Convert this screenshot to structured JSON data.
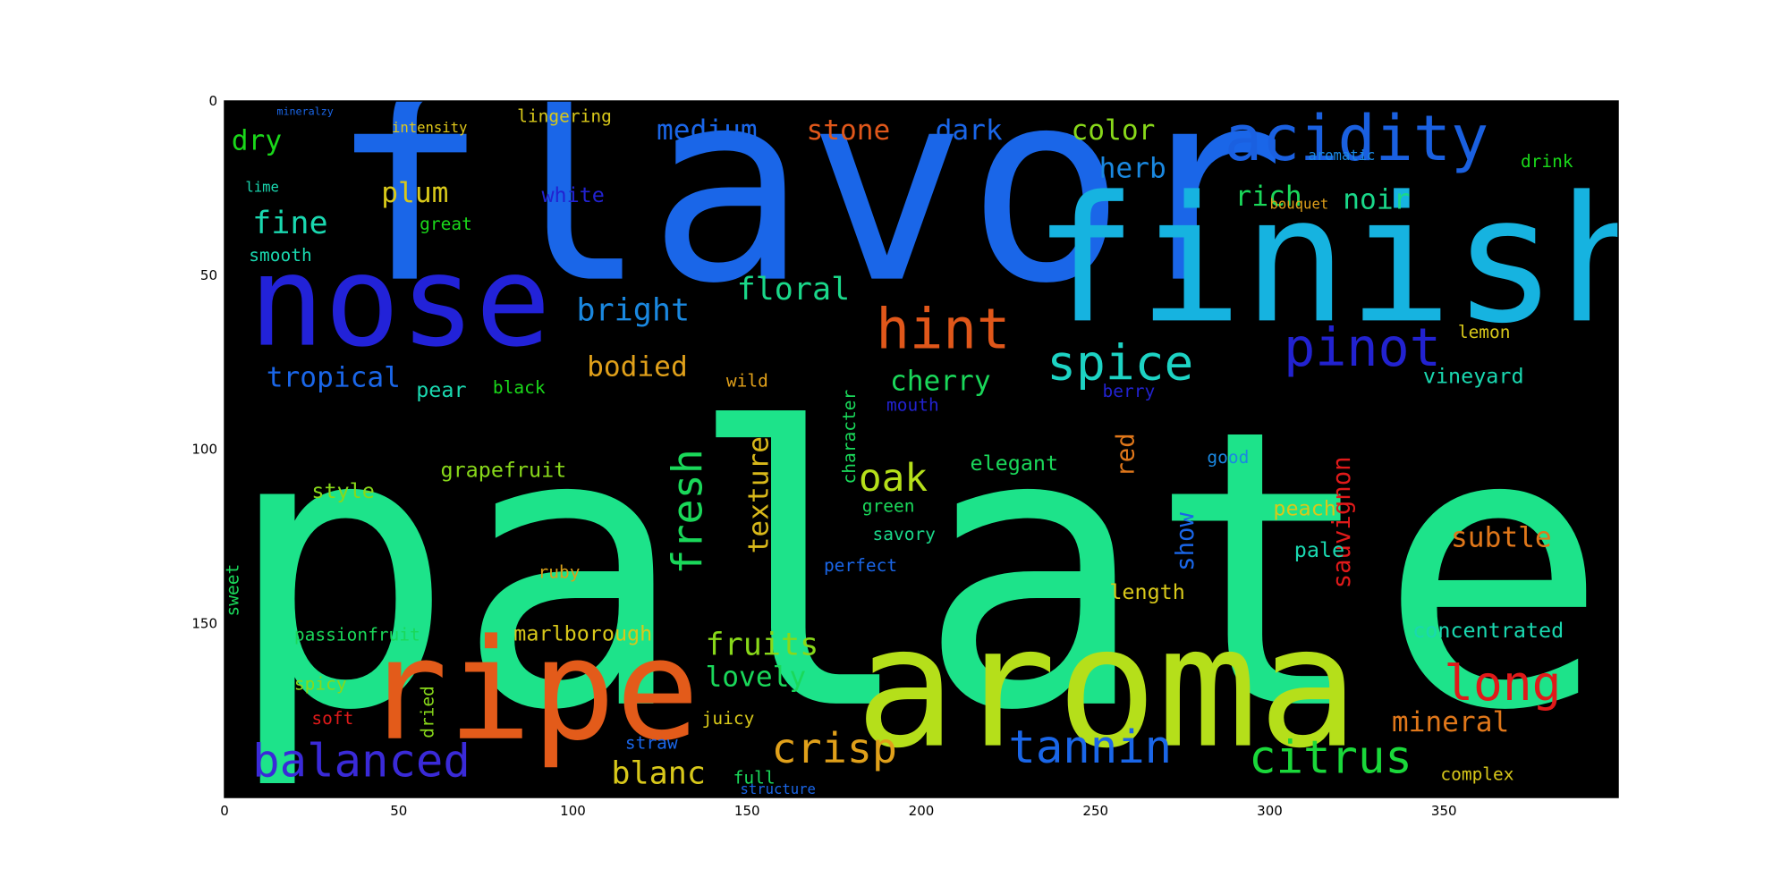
{
  "chart_data": {
    "type": "wordcloud",
    "background_color": "#000000",
    "frame_color": "#000000",
    "xlim": [
      0,
      400
    ],
    "ylim": [
      0,
      200
    ],
    "y_inverted": true,
    "x_ticks": [
      "0",
      "50",
      "100",
      "150",
      "200",
      "250",
      "300",
      "350"
    ],
    "x_tick_values": [
      0,
      50,
      100,
      150,
      200,
      250,
      300,
      350
    ],
    "y_ticks": [
      "0",
      "50",
      "100",
      "150"
    ],
    "y_tick_values": [
      0,
      50,
      100,
      150
    ],
    "words": [
      {
        "text": "palate",
        "x": 0,
        "y": 173,
        "size": 110,
        "color": "#1de38a"
      },
      {
        "text": "flavor",
        "x": 30,
        "y": 51,
        "size": 76,
        "color": "#1a66e8"
      },
      {
        "text": "finish",
        "x": 232,
        "y": 63,
        "size": 50,
        "color": "#16b3e0"
      },
      {
        "text": "aroma",
        "x": 181,
        "y": 185,
        "size": 48,
        "color": "#b5df1a"
      },
      {
        "text": "nose",
        "x": 7,
        "y": 70,
        "size": 36,
        "color": "#2222d8"
      },
      {
        "text": "ripe",
        "x": 40,
        "y": 183,
        "size": 40,
        "color": "#e35b1a"
      },
      {
        "text": "acidity",
        "x": 287,
        "y": 17,
        "size": 18,
        "color": "#1a60e0"
      },
      {
        "text": "hint",
        "x": 187,
        "y": 71,
        "size": 16,
        "color": "#e0571a"
      },
      {
        "text": "pinot",
        "x": 304,
        "y": 76,
        "size": 15,
        "color": "#2222d0"
      },
      {
        "text": "spice",
        "x": 236,
        "y": 80,
        "size": 14,
        "color": "#1dd3c4"
      },
      {
        "text": "long",
        "x": 350,
        "y": 172,
        "size": 14,
        "color": "#e01a1a"
      },
      {
        "text": "balanced",
        "x": 8,
        "y": 194,
        "size": 13,
        "color": "#3a2ad8"
      },
      {
        "text": "tannin",
        "x": 225,
        "y": 190,
        "size": 13,
        "color": "#1a66e8"
      },
      {
        "text": "citrus",
        "x": 294,
        "y": 193,
        "size": 13,
        "color": "#1ad83a"
      },
      {
        "text": "crisp",
        "x": 157,
        "y": 190,
        "size": 12,
        "color": "#e0a01a"
      },
      {
        "text": "fresh",
        "x": 137,
        "y": 136,
        "size": 12,
        "color": "#1ad85a",
        "rotate": true
      },
      {
        "text": "oak",
        "x": 182,
        "y": 112,
        "size": 11,
        "color": "#b5df1a"
      },
      {
        "text": "texture",
        "x": 156,
        "y": 130,
        "size": 8,
        "color": "#d8b81a",
        "rotate": true
      },
      {
        "text": "sauvignon",
        "x": 323,
        "y": 140,
        "size": 7,
        "color": "#e01a1a",
        "rotate": true
      },
      {
        "text": "bright",
        "x": 101,
        "y": 63,
        "size": 9,
        "color": "#1a88e0"
      },
      {
        "text": "floral",
        "x": 147,
        "y": 57,
        "size": 9,
        "color": "#1ad88a"
      },
      {
        "text": "tropical",
        "x": 12,
        "y": 82,
        "size": 8,
        "color": "#1a66e8"
      },
      {
        "text": "bodied",
        "x": 104,
        "y": 79,
        "size": 8,
        "color": "#e0a01a"
      },
      {
        "text": "cherry",
        "x": 191,
        "y": 83,
        "size": 8,
        "color": "#1ad85a"
      },
      {
        "text": "subtle",
        "x": 352,
        "y": 128,
        "size": 8,
        "color": "#e0771a"
      },
      {
        "text": "mineral",
        "x": 335,
        "y": 181,
        "size": 8,
        "color": "#e0771a"
      },
      {
        "text": "blanc",
        "x": 111,
        "y": 196,
        "size": 9,
        "color": "#d8c81a"
      },
      {
        "text": "lovely",
        "x": 138,
        "y": 168,
        "size": 8,
        "color": "#1ad85a"
      },
      {
        "text": "fruits",
        "x": 138,
        "y": 159,
        "size": 9,
        "color": "#88d81a"
      },
      {
        "text": "medium",
        "x": 124,
        "y": 11,
        "size": 8,
        "color": "#1a66e8"
      },
      {
        "text": "stone",
        "x": 167,
        "y": 11,
        "size": 8,
        "color": "#e0571a"
      },
      {
        "text": "dark",
        "x": 204,
        "y": 11,
        "size": 8,
        "color": "#1a66e8"
      },
      {
        "text": "color",
        "x": 243,
        "y": 11,
        "size": 8,
        "color": "#88d81a"
      },
      {
        "text": "herb",
        "x": 251,
        "y": 22,
        "size": 8,
        "color": "#1a88e0"
      },
      {
        "text": "rich",
        "x": 290,
        "y": 30,
        "size": 8,
        "color": "#1ad85a"
      },
      {
        "text": "noir",
        "x": 321,
        "y": 31,
        "size": 8,
        "color": "#1ad88a"
      },
      {
        "text": "dry",
        "x": 2,
        "y": 14,
        "size": 8,
        "color": "#1ad81a"
      },
      {
        "text": "fine",
        "x": 8,
        "y": 38,
        "size": 9,
        "color": "#1ad8b0"
      },
      {
        "text": "plum",
        "x": 45,
        "y": 29,
        "size": 8,
        "color": "#d8c81a"
      },
      {
        "text": "white",
        "x": 91,
        "y": 29,
        "size": 6,
        "color": "#2222d0"
      },
      {
        "text": "great",
        "x": 56,
        "y": 37,
        "size": 5,
        "color": "#1ad81a"
      },
      {
        "text": "smooth",
        "x": 7,
        "y": 46,
        "size": 5,
        "color": "#1ad8b0"
      },
      {
        "text": "lingering",
        "x": 84,
        "y": 6,
        "size": 5,
        "color": "#d8c81a"
      },
      {
        "text": "intensity",
        "x": 48,
        "y": 9,
        "size": 4,
        "color": "#e0c81a"
      },
      {
        "text": "lime",
        "x": 6,
        "y": 26,
        "size": 4,
        "color": "#1ad8b0"
      },
      {
        "text": "pear",
        "x": 55,
        "y": 85,
        "size": 6,
        "color": "#1ad8b0"
      },
      {
        "text": "black",
        "x": 77,
        "y": 84,
        "size": 5,
        "color": "#1ad81a"
      },
      {
        "text": "wild",
        "x": 144,
        "y": 82,
        "size": 5,
        "color": "#e0a01a"
      },
      {
        "text": "grapefruit",
        "x": 62,
        "y": 108,
        "size": 6,
        "color": "#88d81a"
      },
      {
        "text": "style",
        "x": 25,
        "y": 114,
        "size": 6,
        "color": "#88d81a"
      },
      {
        "text": "passionfruit",
        "x": 20,
        "y": 155,
        "size": 5,
        "color": "#1ad85a"
      },
      {
        "text": "marlborough",
        "x": 83,
        "y": 155,
        "size": 6,
        "color": "#d8c81a"
      },
      {
        "text": "sweet",
        "x": 4,
        "y": 148,
        "size": 5,
        "color": "#1ad85a",
        "rotate": true
      },
      {
        "text": "spicy",
        "x": 20,
        "y": 169,
        "size": 5,
        "color": "#88d81a"
      },
      {
        "text": "soft",
        "x": 25,
        "y": 179,
        "size": 5,
        "color": "#e01a1a"
      },
      {
        "text": "dried",
        "x": 60,
        "y": 183,
        "size": 5,
        "color": "#88d81a",
        "rotate": true
      },
      {
        "text": "juicy",
        "x": 137,
        "y": 179,
        "size": 5,
        "color": "#d8c81a"
      },
      {
        "text": "full",
        "x": 146,
        "y": 196,
        "size": 5,
        "color": "#1ad85a"
      },
      {
        "text": "straw",
        "x": 115,
        "y": 186,
        "size": 5,
        "color": "#1a66e8"
      },
      {
        "text": "structure",
        "x": 148,
        "y": 199,
        "size": 4,
        "color": "#1a66e8"
      },
      {
        "text": "ruby",
        "x": 90,
        "y": 137,
        "size": 5,
        "color": "#d8a01a"
      },
      {
        "text": "savory",
        "x": 186,
        "y": 126,
        "size": 5,
        "color": "#1ad88a"
      },
      {
        "text": "perfect",
        "x": 172,
        "y": 135,
        "size": 5,
        "color": "#1a66e8"
      },
      {
        "text": "green",
        "x": 183,
        "y": 118,
        "size": 5,
        "color": "#1ad85a"
      },
      {
        "text": "elegant",
        "x": 214,
        "y": 106,
        "size": 6,
        "color": "#1ad85a"
      },
      {
        "text": "mouth",
        "x": 190,
        "y": 89,
        "size": 5,
        "color": "#2222d0"
      },
      {
        "text": "berry",
        "x": 252,
        "y": 85,
        "size": 5,
        "color": "#2222d0"
      },
      {
        "text": "red",
        "x": 261,
        "y": 108,
        "size": 7,
        "color": "#e0771a",
        "rotate": true
      },
      {
        "text": "show",
        "x": 278,
        "y": 135,
        "size": 7,
        "color": "#1a66e8",
        "rotate": true
      },
      {
        "text": "good",
        "x": 282,
        "y": 104,
        "size": 5,
        "color": "#1a88e0"
      },
      {
        "text": "peach",
        "x": 301,
        "y": 119,
        "size": 6,
        "color": "#d8c81a"
      },
      {
        "text": "pale",
        "x": 307,
        "y": 131,
        "size": 6,
        "color": "#1ad8b0"
      },
      {
        "text": "length",
        "x": 254,
        "y": 143,
        "size": 6,
        "color": "#d8c81a"
      },
      {
        "text": "lemon",
        "x": 354,
        "y": 68,
        "size": 5,
        "color": "#d8c81a"
      },
      {
        "text": "vineyard",
        "x": 344,
        "y": 81,
        "size": 6,
        "color": "#1ad8b0"
      },
      {
        "text": "character",
        "x": 181,
        "y": 110,
        "size": 5,
        "color": "#1ad85a",
        "rotate": true
      },
      {
        "text": "concentrated",
        "x": 341,
        "y": 154,
        "size": 6,
        "color": "#1ad8b0"
      },
      {
        "text": "complex",
        "x": 349,
        "y": 195,
        "size": 5,
        "color": "#d8c81a"
      },
      {
        "text": "drink",
        "x": 372,
        "y": 19,
        "size": 5,
        "color": "#1ad81a"
      },
      {
        "text": "aromatic",
        "x": 311,
        "y": 17,
        "size": 4,
        "color": "#1a88e0"
      },
      {
        "text": "bouquet",
        "x": 300,
        "y": 31,
        "size": 4,
        "color": "#e0a01a"
      },
      {
        "text": "mineralzy",
        "x": 15,
        "y": 4,
        "size": 3,
        "color": "#1a66e8"
      }
    ]
  }
}
